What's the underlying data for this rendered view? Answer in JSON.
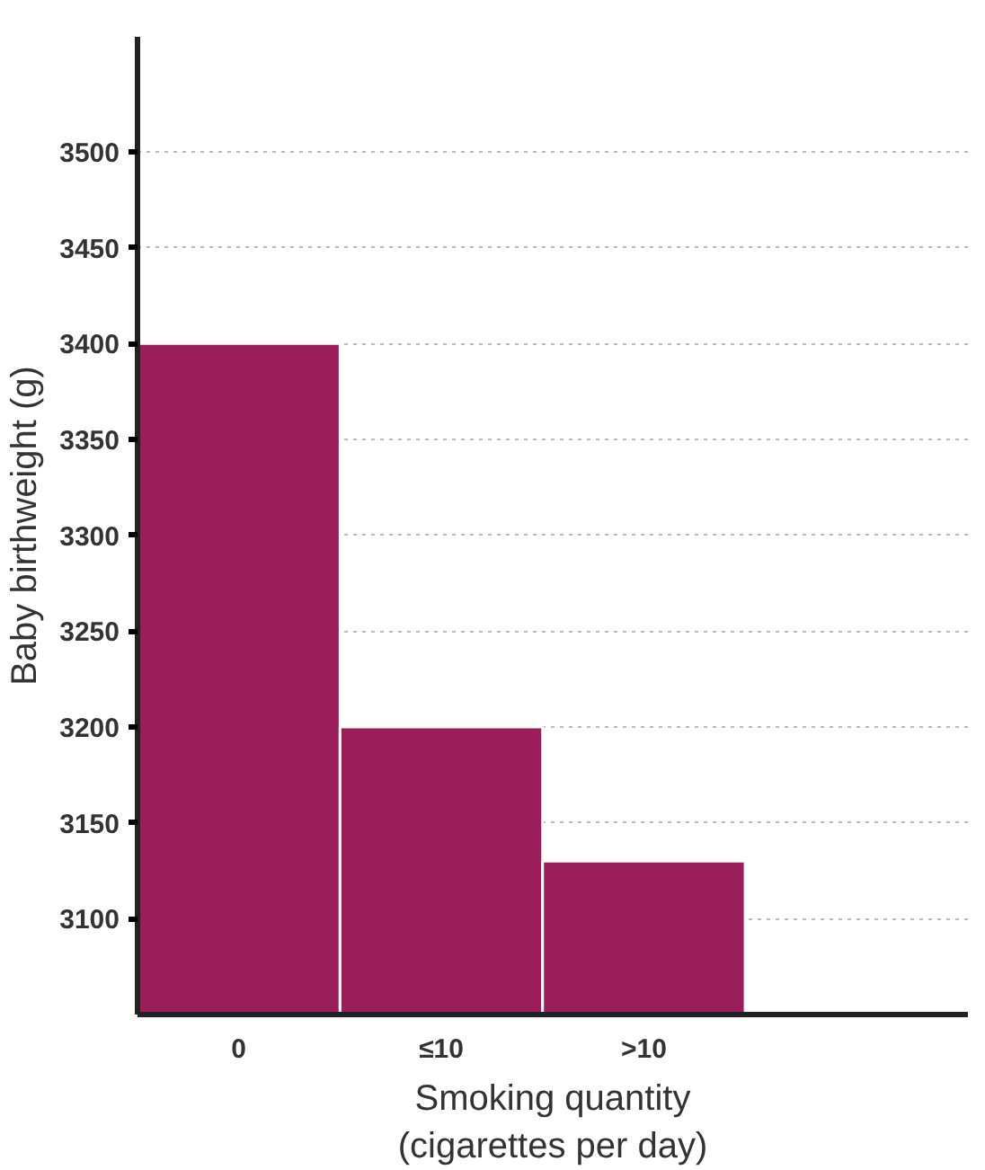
{
  "chart_data": {
    "type": "bar",
    "xlabel": "Smoking quantity\n(cigarettes per day)",
    "ylabel": "Baby birthweight (g)",
    "categories": [
      "0",
      "≤10",
      ">10"
    ],
    "values": [
      3400,
      3200,
      3130
    ],
    "color": "#9b1d5a",
    "ylim": [
      3050,
      3560
    ],
    "yticks": [
      3100,
      3150,
      3200,
      3250,
      3300,
      3350,
      3400,
      3450,
      3500
    ],
    "grid": "y"
  }
}
